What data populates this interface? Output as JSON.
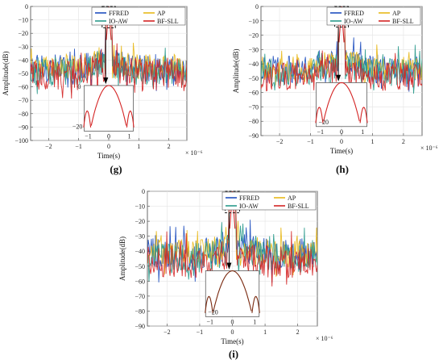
{
  "colors": {
    "FFRED": "#1f4fbf",
    "AP": "#e8b91a",
    "IO-AW": "#2a9a8c",
    "BF-SLL": "#d42424",
    "inset_dark": "#7a2a10"
  },
  "chart_data": [
    {
      "panel_label": "(g)",
      "type": "line",
      "xlabel": "Time(s)",
      "ylabel": "Amplitude(dB)",
      "x_exponent": "× 10⁻⁶",
      "xlim": [
        -2.6,
        2.6
      ],
      "ylim": [
        -100,
        0
      ],
      "xticks": [
        -2,
        -1,
        0,
        1,
        2
      ],
      "yticks": [
        0,
        -10,
        -20,
        -30,
        -40,
        -50,
        -60,
        -70,
        -80,
        -90,
        -100
      ],
      "legend": [
        "FFRED",
        "AP",
        "IO-AW",
        "BF-SLL"
      ],
      "legend_position": "top-right",
      "grid": true,
      "series": [
        {
          "name": "FFRED",
          "noise_floor_mean": -47,
          "min": -85
        },
        {
          "name": "AP",
          "noise_floor_mean": -46,
          "min": -80
        },
        {
          "name": "IO-AW",
          "noise_floor_mean": -50,
          "min": -88
        },
        {
          "name": "BF-SLL",
          "noise_floor_mean": -52,
          "min": -95
        }
      ],
      "peak": {
        "x": 0,
        "y": 0
      },
      "inset": {
        "ytick_labels": [
          "0",
          "−20"
        ],
        "xtick_labels": [
          "−1",
          "0",
          "1"
        ]
      }
    },
    {
      "panel_label": "(h)",
      "type": "line",
      "xlabel": "Time(s)",
      "ylabel": "Amplitude(dB)",
      "x_exponent": "× 10⁻⁶",
      "xlim": [
        -2.6,
        2.6
      ],
      "ylim": [
        -90,
        0
      ],
      "xticks": [
        -2,
        -1,
        0,
        1,
        2
      ],
      "yticks": [
        0,
        -10,
        -20,
        -30,
        -40,
        -50,
        -60,
        -70,
        -80,
        -90
      ],
      "legend": [
        "FFRED",
        "AP",
        "IO-AW",
        "BF-SLL"
      ],
      "legend_position": "top-right",
      "grid": true,
      "series": [
        {
          "name": "FFRED",
          "noise_floor_mean": -45,
          "min": -80
        },
        {
          "name": "AP",
          "noise_floor_mean": -44,
          "min": -75
        },
        {
          "name": "IO-AW",
          "noise_floor_mean": -47,
          "min": -83
        },
        {
          "name": "BF-SLL",
          "noise_floor_mean": -50,
          "min": -86
        }
      ],
      "peak": {
        "x": 0,
        "y": 0
      },
      "inset": {
        "ytick_labels": [
          "−20"
        ],
        "xtick_labels": [
          "−1",
          "0",
          "1"
        ]
      }
    },
    {
      "panel_label": "(i)",
      "type": "line",
      "xlabel": "Time(s)",
      "ylabel": "Amplitude(dB)",
      "x_exponent": "× 10⁻⁶",
      "xlim": [
        -2.6,
        2.6
      ],
      "ylim": [
        -90,
        0
      ],
      "xticks": [
        -2,
        -1,
        0,
        1,
        2
      ],
      "yticks": [
        0,
        -10,
        -20,
        -30,
        -40,
        -50,
        -60,
        -70,
        -80,
        -90
      ],
      "legend": [
        "FFRED",
        "AP",
        "IO-AW",
        "BF-SLL"
      ],
      "legend_position": "top-right",
      "grid": true,
      "series": [
        {
          "name": "FFRED",
          "noise_floor_mean": -43,
          "min": -82
        },
        {
          "name": "AP",
          "noise_floor_mean": -42,
          "min": -75
        },
        {
          "name": "IO-AW",
          "noise_floor_mean": -46,
          "min": -85
        },
        {
          "name": "BF-SLL",
          "noise_floor_mean": -48,
          "min": -88
        }
      ],
      "peak": {
        "x": 0,
        "y": 0
      },
      "inset": {
        "ytick_labels": [
          "−20"
        ],
        "xtick_labels": [
          "−1",
          "0",
          "1"
        ]
      }
    }
  ]
}
